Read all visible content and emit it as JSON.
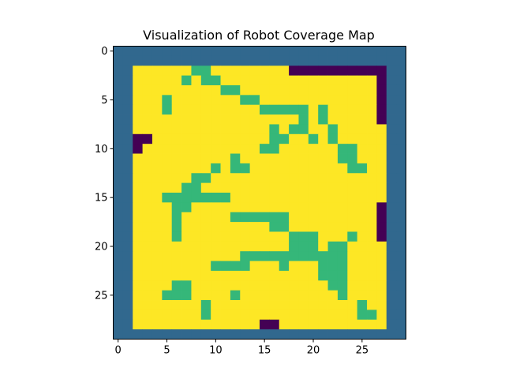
{
  "chart_data": {
    "type": "heatmap",
    "title": "Visualization of Robot Coverage Map",
    "xlabel": "",
    "ylabel": "",
    "x_ticks": [
      0,
      5,
      10,
      15,
      20,
      25
    ],
    "y_ticks": [
      0,
      5,
      10,
      15,
      20,
      25
    ],
    "xlim": [
      -0.5,
      29.5
    ],
    "ylim": [
      29.5,
      -0.5
    ],
    "rows": 30,
    "cols": 30,
    "legend": {
      "0": "#440154",
      "1": "#31688e",
      "2": "#35b779",
      "3": "#fde725"
    },
    "grid": [
      "111111111111111111111111111111",
      "111111111111111111111111111111",
      "113333332233333333000000000011",
      "113333323223333333333333333011",
      "113333333332233333333333333011",
      "113332333333322333333333333011",
      "113332333333333222223233333011",
      "113333333333333333323233333011",
      "113333333333333323223323333311",
      "110033333333333322332323333311",
      "110333333333333223333332233311",
      "113333333333233333333332233311",
      "113333333323223333333333223311",
      "113333332233333333333333333311",
      "113333322333333333333333333311",
      "113332222222333333333333333311",
      "113333223333333333333333333011",
      "113333233333222222333333333011",
      "113333233333333322333333333011",
      "113333233333333333222333233011",
      "113333333333333333222322333311",
      "113333333333322222222222333311",
      "113333333322223332333222333311",
      "113333333333333333333222333311",
      "113333223333333333333322333311",
      "113332223333233333333332333311",
      "113333333233333333333333323311",
      "113333333233333333333333322311",
      "113333333333333003333333333311",
      "111111111111111111111111111111"
    ]
  }
}
